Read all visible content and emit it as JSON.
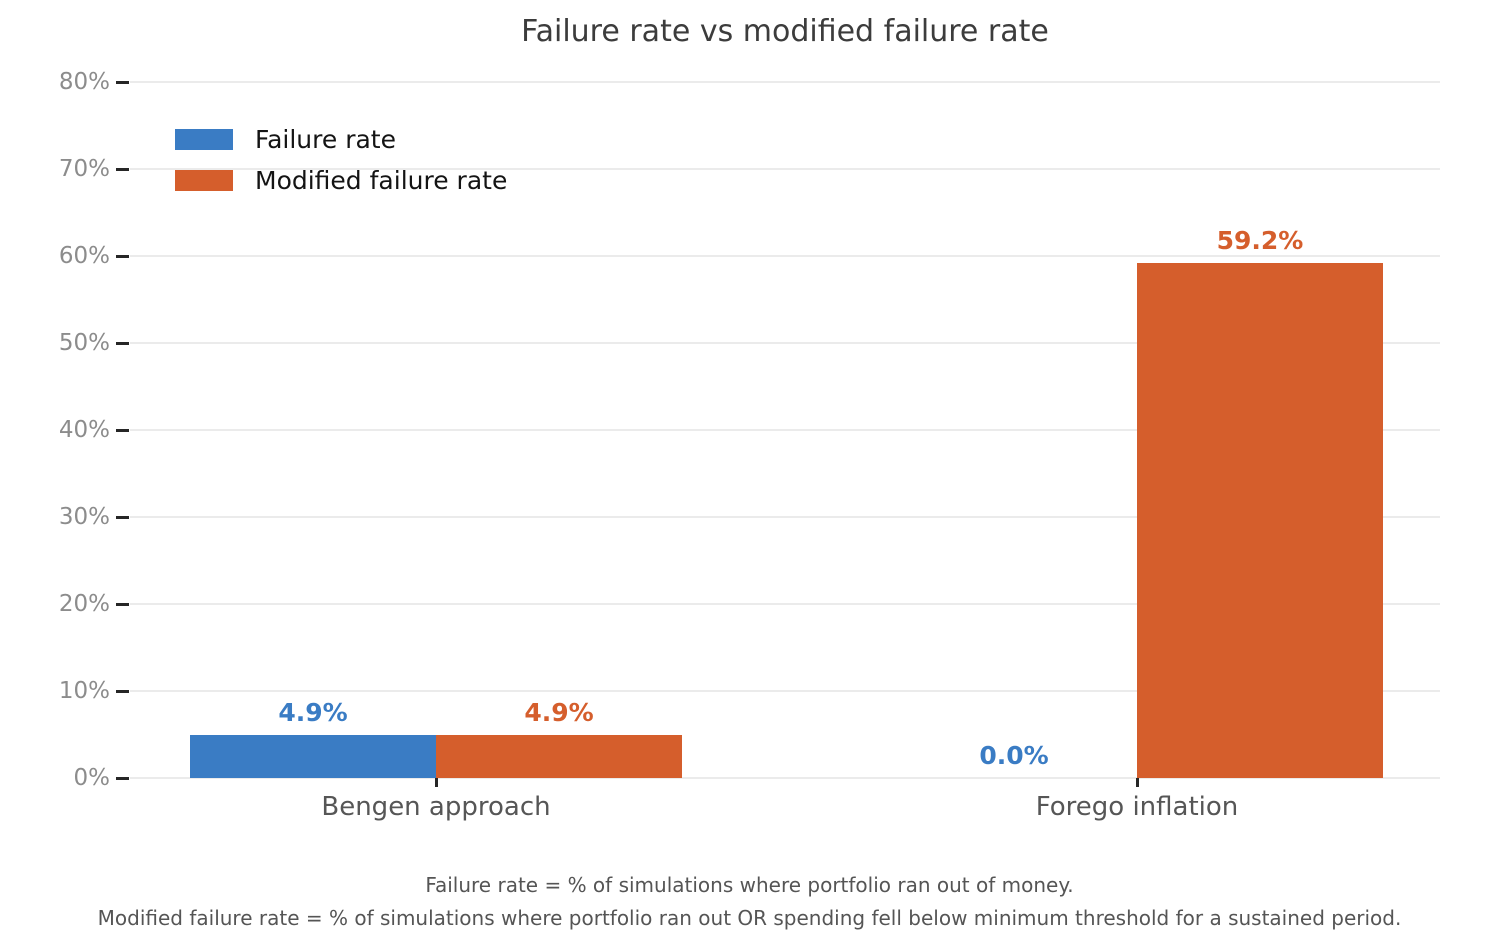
{
  "title": "Failure rate vs modified failure rate",
  "legend": {
    "items": [
      {
        "label": "Failure rate",
        "color": "#3a7cc4"
      },
      {
        "label": "Modified failure rate",
        "color": "#d55e2c"
      }
    ]
  },
  "footer": {
    "line1": "Failure rate = % of simulations where portfolio ran out of money.",
    "line2": "Modified failure rate = % of simulations where portfolio ran out OR spending fell below minimum threshold for a sustained period."
  },
  "chart_data": {
    "type": "bar",
    "title": "Failure rate vs modified failure rate",
    "categories": [
      "Bengen approach",
      "Forego inflation"
    ],
    "series": [
      {
        "name": "Failure rate",
        "color": "#3a7cc4",
        "values": [
          4.9,
          0.0
        ],
        "labels": [
          "4.9%",
          "0.0%"
        ]
      },
      {
        "name": "Modified failure rate",
        "color": "#d55e2c",
        "values": [
          4.9,
          59.2
        ],
        "labels": [
          "4.9%",
          "59.2%"
        ]
      }
    ],
    "ylim": [
      0,
      80
    ],
    "ytick_step": 10,
    "ytick_format": "percent",
    "grid": "horizontal",
    "legend_position": "upper-left",
    "xlabel": "",
    "ylabel": ""
  }
}
